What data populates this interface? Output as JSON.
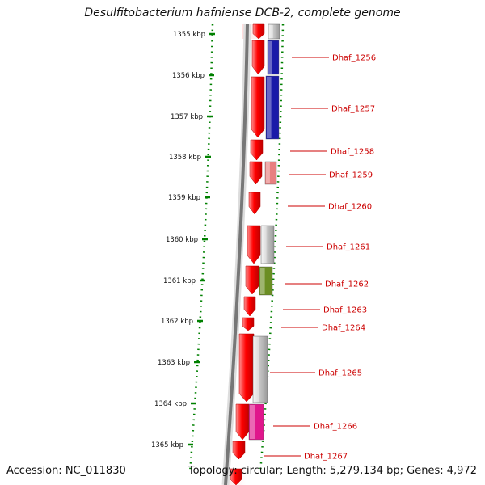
{
  "title": "Desulfitobacterium hafniense DCB-2, complete genome",
  "accession": "Accession: NC_011830",
  "topology": "Topology: circular; Length: 5,279,134 bp; Genes: 4,972",
  "colors": {
    "tick_green": "#008000",
    "forward_gene": "#ff0000",
    "label_red": "#cc0000",
    "backbone": "#888888"
  },
  "tick_labels": [
    "1355 kbp",
    "1356 kbp",
    "1357 kbp",
    "1358 kbp",
    "1359 kbp",
    "1360 kbp",
    "1361 kbp",
    "1362 kbp",
    "1363 kbp",
    "1364 kbp",
    "1365 kbp"
  ],
  "genes": [
    {
      "label": "Dhaf_1256",
      "category_color": "#1a1aa8"
    },
    {
      "label": "Dhaf_1257",
      "category_color": "#1a1aa8"
    },
    {
      "label": "Dhaf_1258",
      "category_color": ""
    },
    {
      "label": "Dhaf_1259",
      "category_color": "#e88080"
    },
    {
      "label": "Dhaf_1260",
      "category_color": ""
    },
    {
      "label": "Dhaf_1261",
      "category_color": "#aaaaaa"
    },
    {
      "label": "Dhaf_1262",
      "category_color": "#6b8e23"
    },
    {
      "label": "Dhaf_1263",
      "category_color": ""
    },
    {
      "label": "Dhaf_1264",
      "category_color": ""
    },
    {
      "label": "Dhaf_1265",
      "category_color": "#aaaaaa"
    },
    {
      "label": "Dhaf_1266",
      "category_color": "#e0168c"
    },
    {
      "label": "Dhaf_1267",
      "category_color": ""
    }
  ]
}
